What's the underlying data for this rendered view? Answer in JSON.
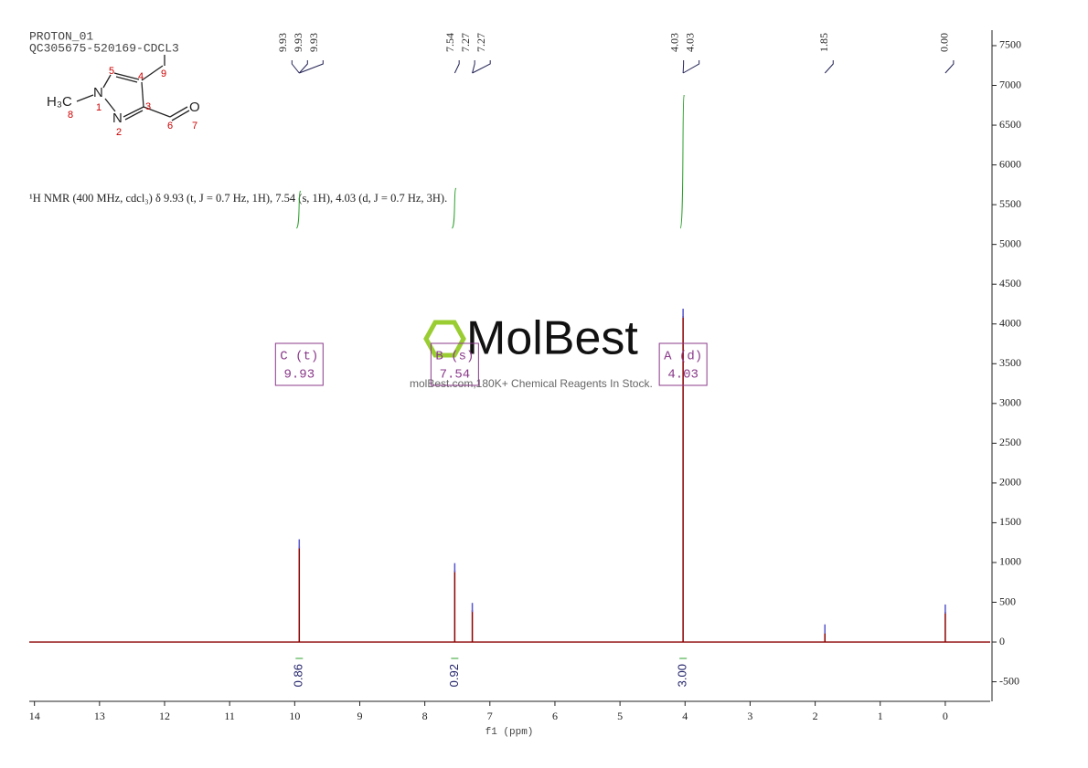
{
  "chart_data": {
    "type": "nmr",
    "title": "PROTON_01",
    "subtitle": "QC305675-520169-CDCL3",
    "description": "¹H NMR (400 MHz, cdcl₃) δ 9.93 (t, J = 0.7 Hz, 1H), 7.54 (s, 1H), 4.03 (d, J = 0.7 Hz, 3H).",
    "watermark": "MolBest",
    "watermark_note": "molBest.com,180K+ Chemical Reagents In Stock.",
    "structure": {
      "atoms": [
        "H₃C",
        "N",
        "N",
        "O"
      ],
      "numbers": [
        "8",
        "1",
        "2",
        "3",
        "4",
        "5",
        "9",
        "6",
        "7"
      ]
    },
    "xlabel": "f1 (ppm)",
    "xlim": [
      14.08,
      -0.69
    ],
    "xticks": [
      14,
      13,
      12,
      11,
      10,
      9,
      8,
      7,
      6,
      5,
      4,
      3,
      2,
      1,
      0
    ],
    "ylim": [
      -746,
      7695
    ],
    "yticks": [
      -500,
      0,
      500,
      1000,
      1500,
      2000,
      2500,
      3000,
      3500,
      4000,
      4500,
      5000,
      5500,
      6000,
      6500,
      7000,
      7500
    ],
    "color": "#8b0000",
    "x": [
      9.93,
      7.54,
      7.27,
      4.03,
      1.85,
      0
    ],
    "values": [
      1200,
      900,
      400,
      4100,
      130,
      380
    ],
    "peak_labels": [
      [
        9.93,
        9.93,
        9.93
      ],
      [
        7.54,
        7.27,
        7.27
      ],
      [
        4.03,
        4.03
      ],
      [
        1.85
      ],
      [
        {
          "value": 0,
          "label": "0.00"
        }
      ]
    ],
    "multiplets": [
      {
        "label": "C (t)",
        "shift": 9.93
      },
      {
        "label": "B (s)",
        "shift": 7.54
      },
      {
        "label": "A (d)",
        "shift": 4.03
      }
    ],
    "integrals": {
      "x": [
        9.93,
        7.54,
        4.03
      ],
      "values": [
        0.86,
        0.92,
        3
      ],
      "value_labels": [
        "0.86",
        "0.92",
        "3.00"
      ],
      "color": "#2ca02c"
    }
  }
}
